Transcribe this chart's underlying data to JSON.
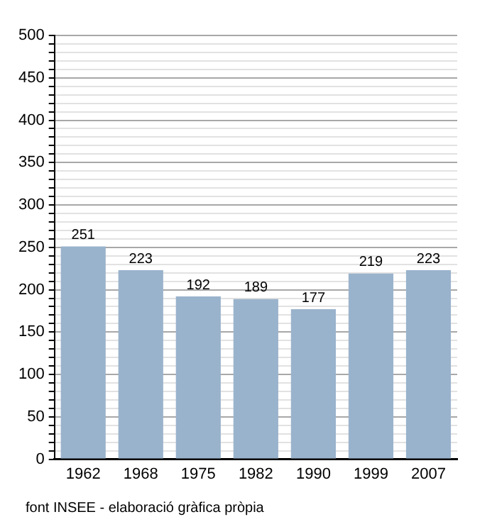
{
  "chart_data": {
    "type": "bar",
    "categories": [
      "1962",
      "1968",
      "1975",
      "1982",
      "1990",
      "1999",
      "2007"
    ],
    "values": [
      251,
      223,
      192,
      189,
      177,
      219,
      223
    ],
    "color": "#9ab3cc",
    "data_labels": true,
    "grid": "y",
    "legend": false,
    "ylim": [
      0,
      500
    ],
    "yticks": [
      0,
      {
        "value": 10,
        "label": null
      },
      {
        "value": 20,
        "label": null
      },
      {
        "value": 30,
        "label": null
      },
      {
        "value": 40,
        "label": null
      },
      50,
      {
        "value": 60,
        "label": null
      },
      {
        "value": 70,
        "label": null
      },
      {
        "value": 80,
        "label": null
      },
      {
        "value": 90,
        "label": null
      },
      100,
      {
        "value": 110,
        "label": null
      },
      {
        "value": 120,
        "label": null
      },
      {
        "value": 130,
        "label": null
      },
      {
        "value": 140,
        "label": null
      },
      150,
      {
        "value": 160,
        "label": null
      },
      {
        "value": 170,
        "label": null
      },
      {
        "value": 180,
        "label": null
      },
      {
        "value": 190,
        "label": null
      },
      200,
      {
        "value": 210,
        "label": null
      },
      {
        "value": 220,
        "label": null
      },
      {
        "value": 230,
        "label": null
      },
      {
        "value": 240,
        "label": null
      },
      250,
      {
        "value": 260,
        "label": null
      },
      {
        "value": 270,
        "label": null
      },
      {
        "value": 280,
        "label": null
      },
      {
        "value": 290,
        "label": null
      },
      300,
      {
        "value": 310,
        "label": null
      },
      {
        "value": 320,
        "label": null
      },
      {
        "value": 330,
        "label": null
      },
      {
        "value": 340,
        "label": null
      },
      350,
      {
        "value": 360,
        "label": null
      },
      {
        "value": 370,
        "label": null
      },
      {
        "value": 380,
        "label": null
      },
      {
        "value": 390,
        "label": null
      },
      400,
      {
        "value": 410,
        "label": null
      },
      {
        "value": 420,
        "label": null
      },
      {
        "value": 430,
        "label": null
      },
      {
        "value": 440,
        "label": null
      },
      450,
      {
        "value": 460,
        "label": null
      },
      {
        "value": 470,
        "label": null
      },
      {
        "value": 480,
        "label": null
      },
      {
        "value": 490,
        "label": null
      },
      500
    ],
    "annotations": [
      "font INSEE - elaboració gràfica pròpia"
    ]
  }
}
